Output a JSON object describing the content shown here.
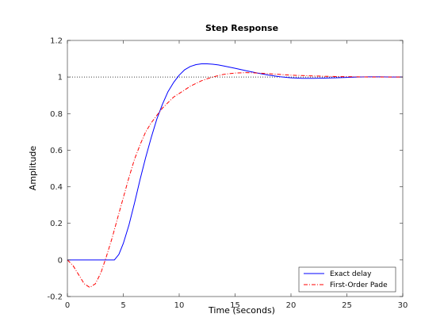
{
  "chart_data": {
    "type": "line",
    "title": "Step Response",
    "xlabel": "Time (seconds)",
    "ylabel": "Amplitude",
    "xlim": [
      0,
      30
    ],
    "ylim": [
      -0.2,
      1.2
    ],
    "xticks": [
      0,
      5,
      10,
      15,
      20,
      25,
      30
    ],
    "yticks": [
      -0.2,
      0,
      0.2,
      0.4,
      0.6,
      0.8,
      1,
      1.2
    ],
    "xtick_labels": [
      "0",
      "5",
      "10",
      "15",
      "20",
      "25",
      "30"
    ],
    "ytick_labels": [
      "-0.2",
      "0",
      "0.2",
      "0.4",
      "0.6",
      "0.8",
      "1",
      "1.2"
    ],
    "grid": false,
    "legend_position": "bottom-right",
    "reference_line": {
      "y": 1,
      "style": "dotted",
      "color": "#000000"
    },
    "series": [
      {
        "name": "Exact delay",
        "color": "#0000ff",
        "style": "solid",
        "x": [
          0,
          4.2,
          4.6,
          5,
          5.5,
          6,
          6.5,
          7,
          7.5,
          8,
          8.5,
          9,
          9.5,
          10,
          10.5,
          11,
          11.5,
          12,
          12.5,
          13,
          13.5,
          14,
          15,
          16,
          17,
          18,
          19,
          20,
          21,
          22,
          23,
          24,
          25,
          26,
          27,
          28,
          29,
          30
        ],
        "y": [
          0,
          0,
          0.03,
          0.09,
          0.19,
          0.31,
          0.44,
          0.56,
          0.67,
          0.77,
          0.85,
          0.92,
          0.97,
          1.01,
          1.04,
          1.058,
          1.068,
          1.072,
          1.072,
          1.07,
          1.066,
          1.06,
          1.048,
          1.034,
          1.022,
          1.01,
          1.002,
          0.996,
          0.993,
          0.993,
          0.994,
          0.996,
          0.998,
          1.0,
          1.001,
          1.001,
          1.0,
          1.0
        ]
      },
      {
        "name": "First-Order Pade",
        "color": "#ff0000",
        "style": "dashdot",
        "x": [
          0,
          0.5,
          1,
          1.5,
          2,
          2.5,
          3,
          3.5,
          4,
          4.5,
          5,
          5.5,
          6,
          6.5,
          7,
          7.5,
          8,
          8.5,
          9,
          9.5,
          10,
          11,
          12,
          13,
          14,
          15,
          16,
          17,
          18,
          19,
          20,
          21,
          22,
          23,
          24,
          25,
          26,
          27,
          28,
          29,
          30
        ],
        "y": [
          0,
          -0.03,
          -0.08,
          -0.13,
          -0.15,
          -0.13,
          -0.07,
          0.02,
          0.12,
          0.23,
          0.34,
          0.45,
          0.55,
          0.63,
          0.7,
          0.75,
          0.79,
          0.83,
          0.86,
          0.89,
          0.91,
          0.95,
          0.98,
          1.0,
          1.015,
          1.022,
          1.024,
          1.022,
          1.018,
          1.014,
          1.01,
          1.008,
          1.006,
          1.004,
          1.003,
          1.002,
          1.001,
          1.0,
          1.0,
          1.0,
          1.0
        ]
      }
    ]
  }
}
